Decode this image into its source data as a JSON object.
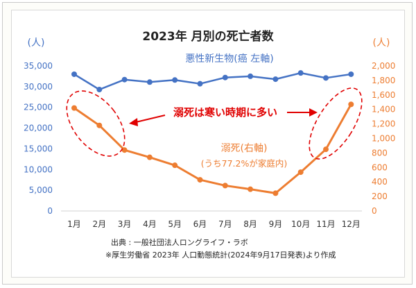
{
  "chart_data": {
    "type": "line",
    "title": "2023年 月別の死亡者数",
    "categories": [
      "1月",
      "2月",
      "3月",
      "4月",
      "5月",
      "6月",
      "7月",
      "8月",
      "9月",
      "10月",
      "11月",
      "12月"
    ],
    "left_axis": {
      "unit": "(人)",
      "ylim": [
        0,
        35000
      ],
      "ticks": [
        "0",
        "5,000",
        "10,000",
        "15,000",
        "20,000",
        "25,000",
        "30,000",
        "35,000"
      ],
      "color": "#4472c4"
    },
    "right_axis": {
      "unit": "(人)",
      "ylim": [
        0,
        2000
      ],
      "ticks": [
        "0",
        "200",
        "400",
        "600",
        "800",
        "1,000",
        "1,200",
        "1,400",
        "1,600",
        "1,800",
        "2,000"
      ],
      "color": "#ed7d31"
    },
    "series": [
      {
        "name": "悪性新生物(癌 左軸)",
        "axis": "left",
        "color": "#4472c4",
        "values": [
          33000,
          29300,
          31700,
          31100,
          31600,
          30700,
          32200,
          32500,
          31800,
          33300,
          32100,
          33000
        ]
      },
      {
        "name": "溺死(右軸)",
        "axis": "right",
        "color": "#ed7d31",
        "values": [
          1420,
          1180,
          840,
          740,
          630,
          430,
          350,
          300,
          245,
          535,
          850,
          1470
        ]
      }
    ],
    "annotations": {
      "cancer_label": "悪性新生物(癌 左軸)",
      "drowning_label": "溺死(右軸)",
      "drowning_sub": "(うち77.2%が家庭内)",
      "callout": "溺死は寒い時期に多い"
    },
    "grid": false
  },
  "source_line_1": "出典 : 一般社団法人ロングライフ・ラボ",
  "source_line_2": "※厚生労働省 2023年 人口動態統計(2024年9月17日発表)より作成"
}
